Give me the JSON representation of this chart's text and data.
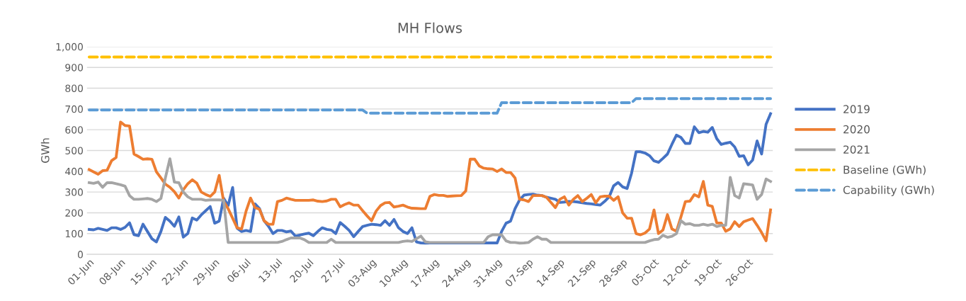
{
  "chart_data": {
    "type": "line",
    "title": "MH Flows",
    "ylabel": "GWh",
    "categories": [
      "01-Jun",
      null,
      null,
      null,
      null,
      null,
      null,
      "08-Jun",
      null,
      null,
      null,
      null,
      null,
      null,
      "15-Jun",
      null,
      null,
      null,
      null,
      null,
      null,
      "22-Jun",
      null,
      null,
      null,
      null,
      null,
      null,
      "29-Jun",
      null,
      null,
      null,
      null,
      null,
      null,
      "06-Jul",
      null,
      null,
      null,
      null,
      null,
      null,
      "13-Jul",
      null,
      null,
      null,
      null,
      null,
      null,
      "20-Jul",
      null,
      null,
      null,
      null,
      null,
      null,
      "27-Jul",
      null,
      null,
      null,
      null,
      null,
      null,
      "03-Aug",
      null,
      null,
      null,
      null,
      null,
      null,
      "10-Aug",
      null,
      null,
      null,
      null,
      null,
      null,
      "17-Aug",
      null,
      null,
      null,
      null,
      null,
      null,
      "24-Aug",
      null,
      null,
      null,
      null,
      null,
      null,
      "31-Aug",
      null,
      null,
      null,
      null,
      null,
      null,
      "07-Sep",
      null,
      null,
      null,
      null,
      null,
      null,
      "14-Sep",
      null,
      null,
      null,
      null,
      null,
      null,
      "21-Sep",
      null,
      null,
      null,
      null,
      null,
      null,
      "28-Sep",
      null,
      null,
      null,
      null,
      null,
      null,
      "05-Oct",
      null,
      null,
      null,
      null,
      null,
      null,
      "12-Oct",
      null,
      null,
      null,
      null,
      null,
      null,
      "19-Oct",
      null,
      null,
      null,
      null,
      null,
      null,
      "26-Oct",
      null,
      null,
      null,
      null,
      null
    ],
    "series": [
      {
        "name": "2019",
        "color": "#4472c4",
        "line_style": "solid",
        "values": [
          120,
          118,
          125,
          120,
          115,
          128,
          128,
          120,
          130,
          152,
          95,
          90,
          145,
          110,
          75,
          60,
          110,
          178,
          160,
          135,
          180,
          83,
          100,
          175,
          165,
          190,
          210,
          230,
          150,
          160,
          270,
          235,
          322,
          126,
          110,
          115,
          110,
          243,
          220,
          162,
          135,
          100,
          115,
          115,
          108,
          112,
          88,
          93,
          98,
          102,
          90,
          110,
          128,
          120,
          117,
          100,
          153,
          135,
          115,
          85,
          110,
          134,
          140,
          145,
          143,
          140,
          162,
          140,
          168,
          128,
          110,
          100,
          128,
          60,
          55,
          54,
          55,
          55,
          55,
          55,
          55,
          55,
          55,
          55,
          55,
          55,
          55,
          55,
          55,
          55,
          55,
          55,
          110,
          150,
          160,
          220,
          262,
          285,
          288,
          290,
          285,
          283,
          275,
          270,
          265,
          250,
          252,
          255,
          254,
          252,
          248,
          245,
          243,
          240,
          237,
          255,
          277,
          330,
          346,
          325,
          317,
          391,
          494,
          494,
          488,
          475,
          450,
          443,
          462,
          483,
          530,
          574,
          563,
          534,
          534,
          614,
          586,
          592,
          588,
          611,
          557,
          529,
          535,
          540,
          517,
          472,
          475,
          431,
          454,
          546,
          483,
          626,
          677
        ]
      },
      {
        "name": "2020",
        "color": "#ed7d31",
        "line_style": "solid",
        "values": [
          408,
          397,
          386,
          403,
          405,
          451,
          466,
          637,
          620,
          618,
          483,
          471,
          458,
          460,
          458,
          397,
          368,
          338,
          323,
          302,
          271,
          311,
          340,
          359,
          343,
          300,
          288,
          279,
          300,
          380,
          254,
          220,
          174,
          128,
          122,
          208,
          271,
          225,
          217,
          162,
          145,
          145,
          254,
          260,
          271,
          265,
          260,
          260,
          260,
          260,
          262,
          256,
          254,
          257,
          265,
          265,
          229,
          240,
          248,
          237,
          237,
          210,
          185,
          162,
          208,
          235,
          248,
          250,
          228,
          232,
          237,
          228,
          222,
          221,
          220,
          220,
          279,
          288,
          284,
          284,
          279,
          281,
          282,
          283,
          305,
          458,
          458,
          426,
          415,
          412,
          411,
          399,
          411,
          394,
          394,
          368,
          265,
          262,
          254,
          283,
          283,
          283,
          275,
          250,
          225,
          265,
          277,
          237,
          265,
          283,
          254,
          270,
          288,
          248,
          277,
          280,
          280,
          260,
          277,
          200,
          174,
          174,
          100,
          94,
          103,
          122,
          214,
          100,
          117,
          191,
          122,
          111,
          180,
          254,
          256,
          288,
          277,
          351,
          237,
          231,
          151,
          151,
          111,
          122,
          157,
          134,
          157,
          165,
          172,
          140,
          105,
          65,
          214
        ]
      },
      {
        "name": "2021",
        "color": "#a5a5a5",
        "line_style": "solid",
        "values": [
          345,
          342,
          348,
          323,
          345,
          345,
          340,
          335,
          328,
          283,
          265,
          265,
          267,
          269,
          265,
          254,
          269,
          368,
          460,
          348,
          345,
          300,
          277,
          265,
          265,
          265,
          260,
          262,
          262,
          262,
          260,
          57,
          57,
          57,
          57,
          57,
          57,
          57,
          57,
          57,
          57,
          57,
          57,
          62,
          71,
          79,
          79,
          79,
          71,
          57,
          57,
          57,
          57,
          57,
          73,
          57,
          57,
          57,
          57,
          57,
          57,
          57,
          57,
          57,
          57,
          57,
          57,
          57,
          57,
          57,
          62,
          65,
          62,
          75,
          88,
          60,
          57,
          57,
          57,
          57,
          57,
          57,
          57,
          57,
          57,
          57,
          57,
          57,
          57,
          85,
          94,
          94,
          94,
          65,
          57,
          57,
          54,
          55,
          57,
          73,
          85,
          73,
          73,
          57,
          57,
          57,
          57,
          57,
          57,
          57,
          57,
          57,
          57,
          57,
          57,
          57,
          57,
          57,
          57,
          57,
          57,
          57,
          57,
          57,
          57,
          65,
          71,
          73,
          92,
          82,
          87,
          100,
          162,
          145,
          148,
          140,
          140,
          145,
          140,
          145,
          134,
          140,
          140,
          371,
          283,
          271,
          340,
          337,
          334,
          265,
          288,
          363,
          351
        ]
      },
      {
        "name": "Baseline (GWh)",
        "color": "#ffc000",
        "line_style": "dashed",
        "values": [
          950,
          950,
          950,
          950,
          950,
          950,
          950,
          950,
          950,
          950,
          950,
          950,
          950,
          950,
          950,
          950,
          950,
          950,
          950,
          950,
          950,
          950,
          950,
          950,
          950,
          950,
          950,
          950,
          950,
          950,
          950,
          950,
          950,
          950,
          950,
          950,
          950,
          950,
          950,
          950,
          950,
          950,
          950,
          950,
          950,
          950,
          950,
          950,
          950,
          950,
          950,
          950,
          950,
          950,
          950,
          950,
          950,
          950,
          950,
          950,
          950,
          950,
          950,
          950,
          950,
          950,
          950,
          950,
          950,
          950,
          950,
          950,
          950,
          950,
          950,
          950,
          950,
          950,
          950,
          950,
          950,
          950,
          950,
          950,
          950,
          950,
          950,
          950,
          950,
          950,
          950,
          950,
          950,
          950,
          950,
          950,
          950,
          950,
          950,
          950,
          950,
          950,
          950,
          950,
          950,
          950,
          950,
          950,
          950,
          950,
          950,
          950,
          950,
          950,
          950,
          950,
          950,
          950,
          950,
          950,
          950,
          950,
          950,
          950,
          950,
          950,
          950,
          950,
          950,
          950,
          950,
          950,
          950,
          950,
          950,
          950,
          950,
          950,
          950,
          950,
          950,
          950,
          950,
          950,
          950,
          950,
          950,
          950,
          950,
          950,
          950,
          950,
          950
        ]
      },
      {
        "name": "Capability (GWh)",
        "color": "#5b9bd5",
        "line_style": "dashed",
        "values": [
          695,
          695,
          695,
          695,
          695,
          695,
          695,
          695,
          695,
          695,
          695,
          695,
          695,
          695,
          695,
          695,
          695,
          695,
          695,
          695,
          695,
          695,
          695,
          695,
          695,
          695,
          695,
          695,
          695,
          695,
          695,
          695,
          695,
          695,
          695,
          695,
          695,
          695,
          695,
          695,
          695,
          695,
          695,
          695,
          695,
          695,
          695,
          695,
          695,
          695,
          695,
          695,
          695,
          695,
          695,
          695,
          695,
          695,
          695,
          695,
          695,
          695,
          680,
          680,
          680,
          680,
          680,
          680,
          680,
          680,
          680,
          680,
          680,
          680,
          680,
          680,
          680,
          680,
          680,
          680,
          680,
          680,
          680,
          680,
          680,
          680,
          680,
          680,
          680,
          680,
          680,
          680,
          730,
          730,
          730,
          730,
          730,
          730,
          730,
          730,
          730,
          730,
          730,
          730,
          730,
          730,
          730,
          730,
          730,
          730,
          730,
          730,
          730,
          730,
          730,
          730,
          730,
          730,
          730,
          730,
          730,
          730,
          750,
          750,
          750,
          750,
          750,
          750,
          750,
          750,
          750,
          750,
          750,
          750,
          750,
          750,
          750,
          750,
          750,
          750,
          750,
          750,
          750,
          750,
          750,
          750,
          750,
          750,
          750,
          750,
          750,
          750,
          750
        ]
      }
    ],
    "ylim": [
      0,
      1000
    ],
    "yticks": [
      0,
      100,
      200,
      300,
      400,
      500,
      600,
      700,
      800,
      900,
      {
        "value": 1000,
        "label": "1,000"
      }
    ],
    "grid": "y",
    "legend": "right",
    "marker": "none"
  }
}
